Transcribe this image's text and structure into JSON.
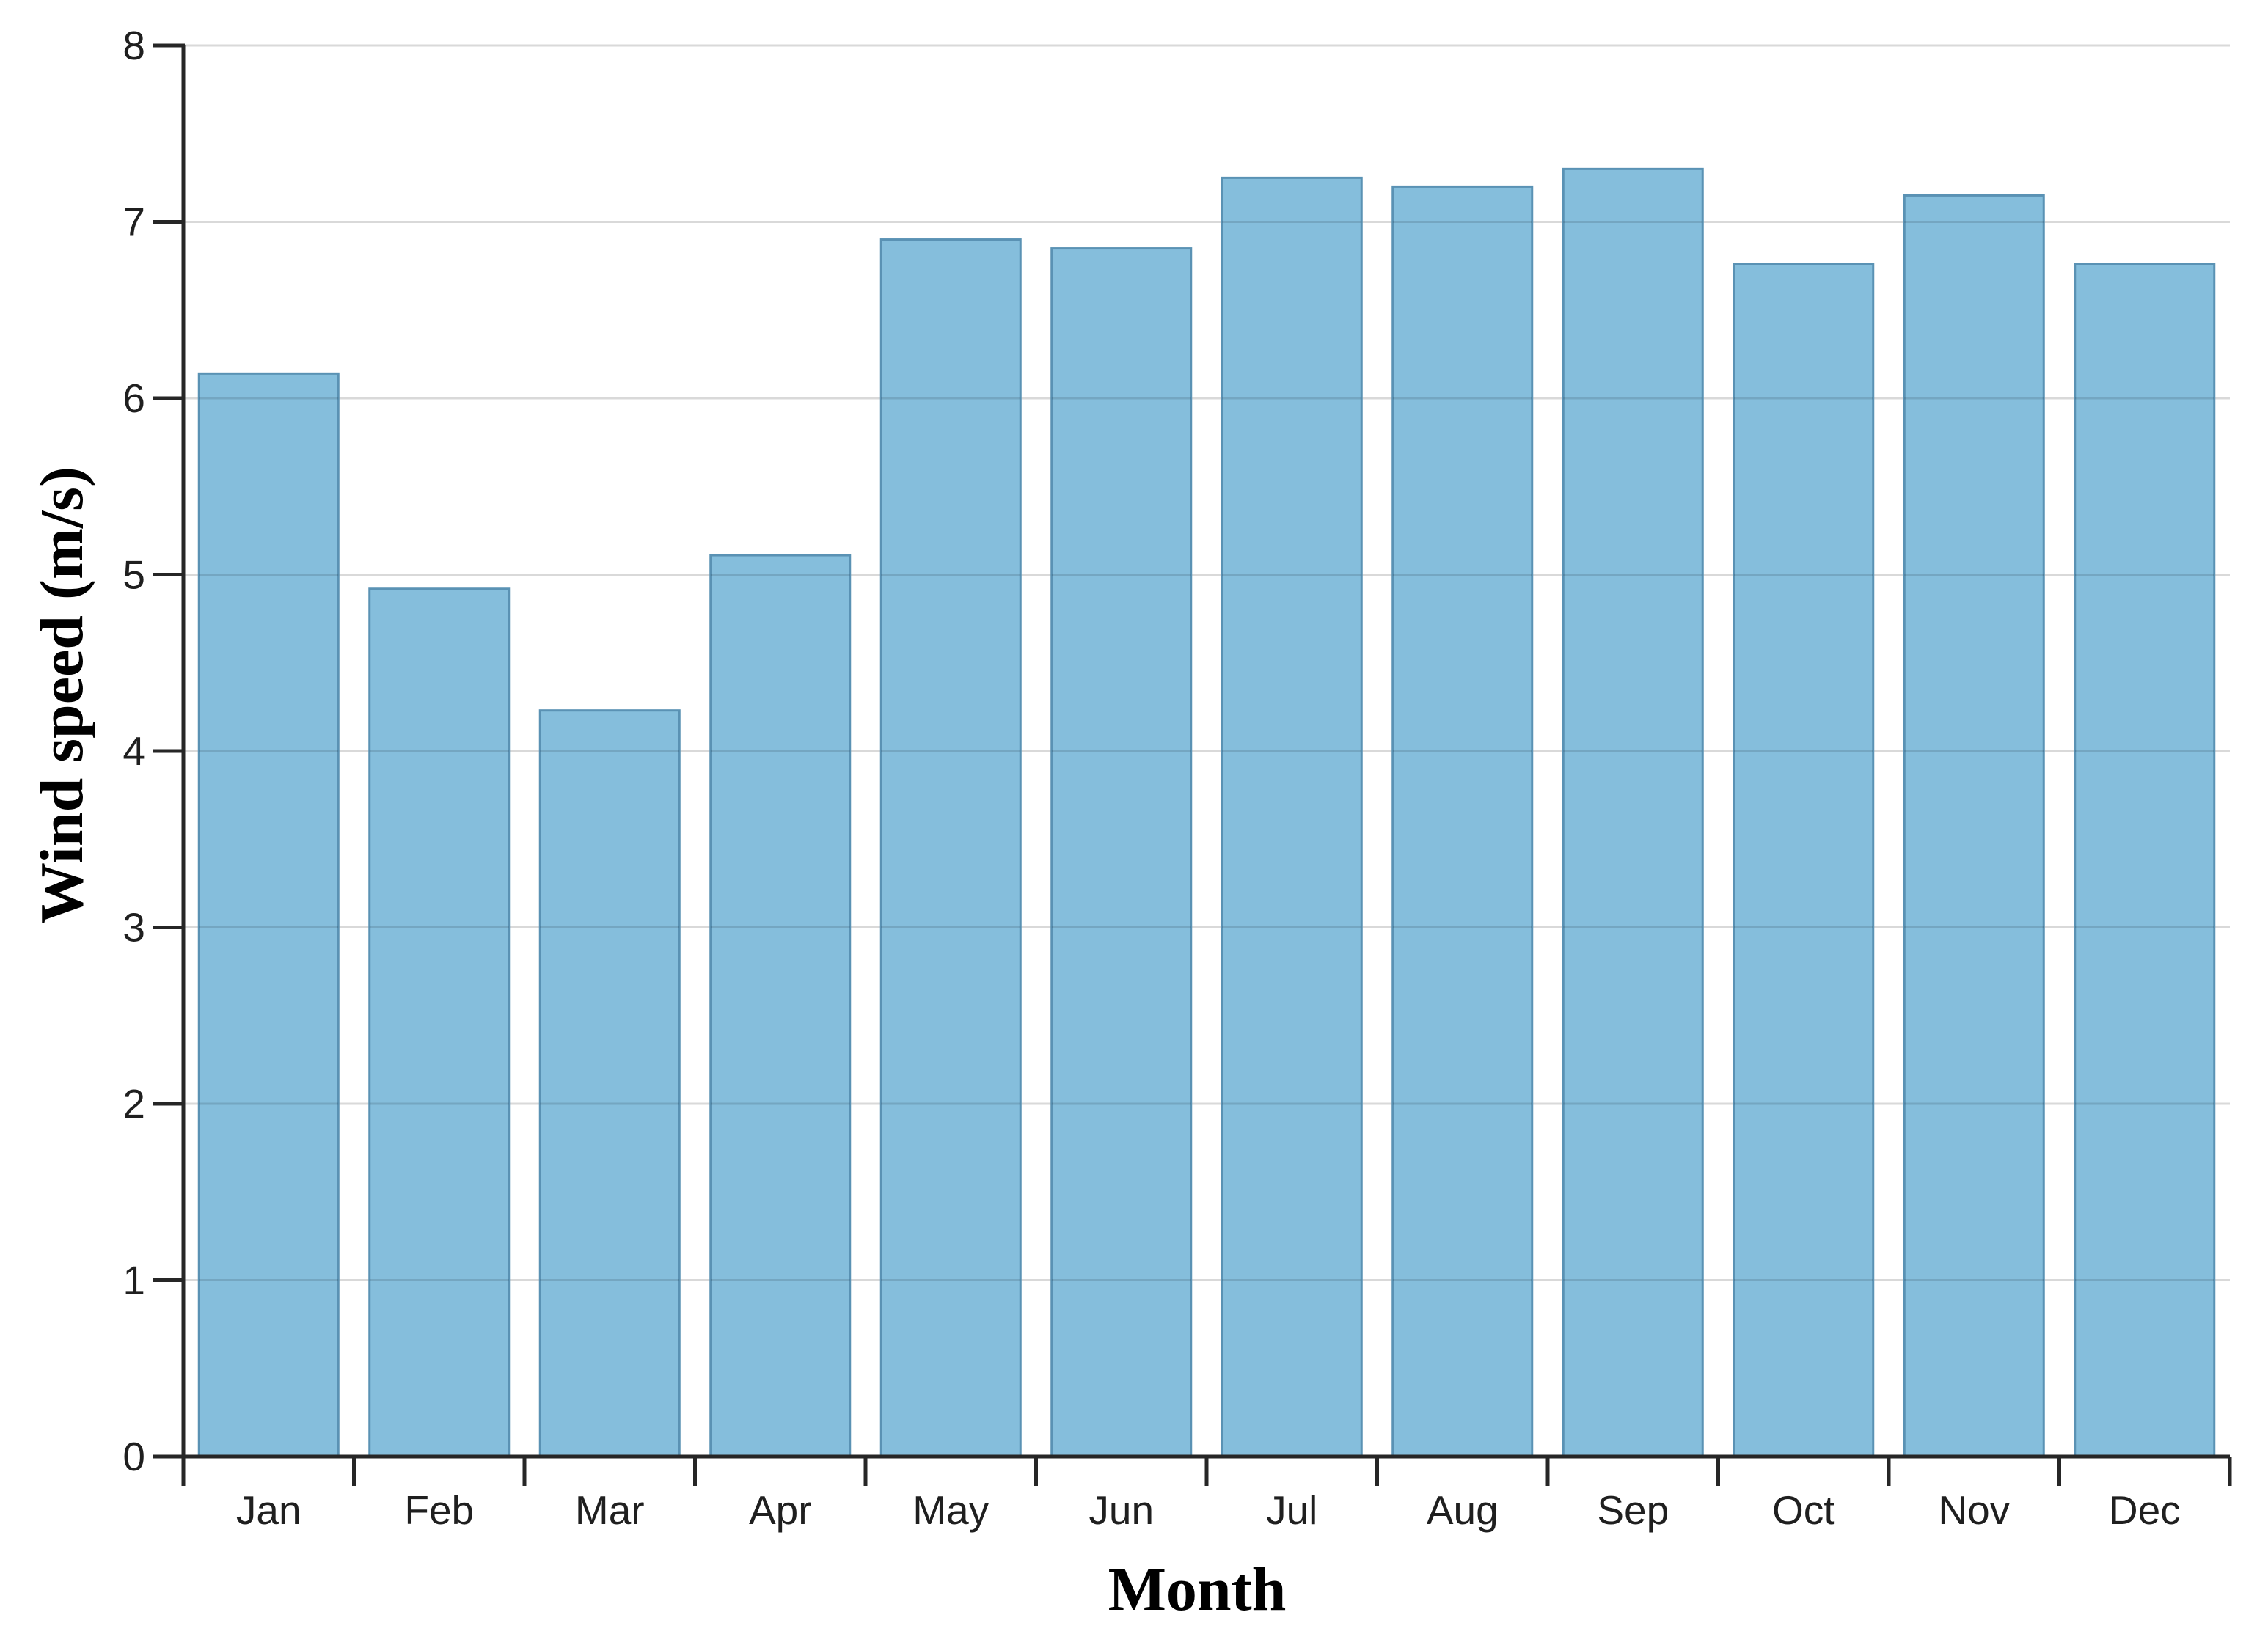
{
  "chart_data": {
    "type": "bar",
    "title": "",
    "categories": [
      "Jan",
      "Feb",
      "Mar",
      "Apr",
      "May",
      "Jun",
      "Jul",
      "Aug",
      "Sep",
      "Oct",
      "Nov",
      "Dec"
    ],
    "values": [
      6.14,
      4.92,
      4.23,
      5.11,
      6.9,
      6.85,
      7.25,
      7.2,
      7.3,
      6.76,
      7.15,
      6.76
    ],
    "xlabel": "Month",
    "ylabel": "Wind speed (m/s)",
    "ylim": [
      0,
      8
    ],
    "yticks": [
      0,
      1,
      2,
      3,
      4,
      5,
      6,
      7,
      8
    ],
    "ytick_labels": [
      "0",
      "1",
      "2",
      "3",
      "4",
      "5",
      "6",
      "7",
      "8"
    ],
    "grid": "horizontal",
    "legend": "none",
    "background_color": "#FFFFFF",
    "bar_color": "#85BEDC",
    "bar_border_color": "#5A92B4",
    "gridline_color": "#D9D9D9",
    "axis_color": "#262626",
    "tick_label_color": "#1F1F1F",
    "title_color": "#000000"
  }
}
